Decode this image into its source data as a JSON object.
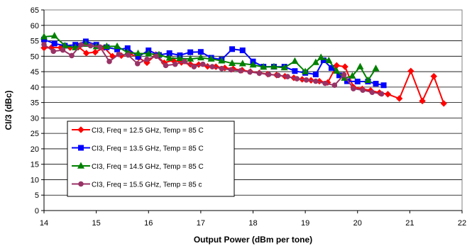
{
  "chart_data": {
    "type": "line",
    "title": "",
    "xlabel": "Output Power (dBm per tone)",
    "ylabel": "CI/3 (dBc)",
    "xlim": [
      14,
      22
    ],
    "ylim": [
      0,
      65
    ],
    "xticks": [
      "14",
      "15",
      "16",
      "17",
      "18",
      "19",
      "20",
      "21",
      "22"
    ],
    "yticks": [
      "0",
      "5",
      "10",
      "15",
      "20",
      "25",
      "30",
      "35",
      "40",
      "45",
      "50",
      "55",
      "60",
      "65"
    ],
    "grid": "horizontal",
    "legend_position": "lower-left",
    "series": [
      {
        "name": "CI3, Freq = 12.5 GHz, Temp = 85 C",
        "color": "#ff0000",
        "marker": "diamond",
        "x": [
          14.0,
          14.14,
          14.32,
          14.5,
          14.66,
          14.81,
          14.98,
          15.15,
          15.31,
          15.48,
          15.64,
          15.81,
          15.97,
          16.14,
          16.3,
          16.47,
          16.63,
          16.8,
          16.96,
          17.13,
          17.29,
          17.46,
          17.62,
          17.79,
          17.95,
          18.12,
          18.28,
          18.45,
          18.61,
          18.78,
          18.94,
          19.11,
          19.27,
          19.43,
          19.6,
          19.76,
          19.92,
          20.09,
          20.25,
          20.42,
          20.58,
          20.8,
          21.02,
          21.24,
          21.46,
          21.65
        ],
        "y": [
          52.7,
          52.8,
          52.8,
          52.8,
          53.0,
          51.0,
          51.3,
          52.8,
          50.0,
          50.2,
          50.8,
          49.5,
          47.9,
          50.5,
          47.9,
          48.7,
          48.0,
          47.4,
          47.3,
          46.7,
          46.6,
          46.2,
          45.9,
          45.5,
          45.0,
          44.6,
          44.2,
          43.9,
          43.5,
          43.0,
          42.5,
          42.2,
          41.9,
          41.5,
          47.0,
          46.6,
          40.0,
          39.4,
          38.9,
          38.2,
          37.7,
          36.3,
          45.2,
          35.5,
          43.5,
          34.7
        ]
      },
      {
        "name": "CI3, Freq = 13.5 GHz, Temp = 85 C",
        "color": "#0000ff",
        "marker": "square",
        "x": [
          14.0,
          14.2,
          14.4,
          14.6,
          14.8,
          15.0,
          15.2,
          15.4,
          15.6,
          15.8,
          16.0,
          16.2,
          16.4,
          16.6,
          16.8,
          17.0,
          17.2,
          17.4,
          17.6,
          17.8,
          18.0,
          18.2,
          18.4,
          18.6,
          18.8,
          19.0,
          19.2,
          19.35,
          19.5,
          19.65,
          19.8,
          20.0,
          20.2,
          20.35,
          20.5
        ],
        "y": [
          55.4,
          54.1,
          53.4,
          53.7,
          54.8,
          53.7,
          52.9,
          52.2,
          52.6,
          49.8,
          51.9,
          50.4,
          51.0,
          50.3,
          51.3,
          51.4,
          49.5,
          48.9,
          52.3,
          51.9,
          48.3,
          46.6,
          46.6,
          46.6,
          45.2,
          44.6,
          44.1,
          48.7,
          46.2,
          43.8,
          41.9,
          41.8,
          41.8,
          41.1,
          40.6
        ]
      },
      {
        "name": "CI3, Freq = 14.5 GHz, Temp = 85 C",
        "color": "#008000",
        "marker": "triangle",
        "x": [
          14.0,
          14.2,
          14.4,
          14.6,
          14.8,
          15.0,
          15.2,
          15.4,
          15.6,
          15.8,
          16.0,
          16.2,
          16.4,
          16.6,
          16.8,
          17.0,
          17.2,
          17.4,
          17.6,
          17.8,
          18.0,
          18.2,
          18.4,
          18.6,
          18.8,
          19.0,
          19.2,
          19.3,
          19.45,
          19.6,
          19.75,
          19.9,
          20.05,
          20.2,
          20.35
        ],
        "y": [
          56.3,
          56.6,
          53.4,
          52.8,
          53.9,
          53.1,
          53.2,
          53.2,
          51.2,
          50.9,
          50.8,
          50.5,
          49.4,
          49.3,
          49.1,
          49.5,
          49.1,
          48.5,
          47.7,
          47.6,
          47.2,
          46.5,
          46.6,
          46.3,
          48.4,
          45.0,
          48.0,
          49.6,
          48.6,
          45.2,
          42.9,
          43.6,
          46.6,
          42.2,
          46.0
        ]
      },
      {
        "name": "CI3, Freq = 15.5 GHz, Temp = 85 c",
        "color": "#993366",
        "marker": "circle",
        "x": [
          14.0,
          14.18,
          14.36,
          14.53,
          14.71,
          14.89,
          15.07,
          15.25,
          15.43,
          15.61,
          15.79,
          15.97,
          16.15,
          16.33,
          16.51,
          16.69,
          16.87,
          17.04,
          17.22,
          17.4,
          17.58,
          17.76,
          17.94,
          18.12,
          18.3,
          18.48,
          18.66,
          18.84,
          19.02,
          19.2,
          19.38,
          19.56,
          19.74,
          19.92,
          20.1,
          20.28,
          20.46
        ],
        "y": [
          53.8,
          51.6,
          52.0,
          50.2,
          53.7,
          53.4,
          53.0,
          48.3,
          50.6,
          50.4,
          47.6,
          49.0,
          50.0,
          47.0,
          47.4,
          48.3,
          46.6,
          47.4,
          46.6,
          46.0,
          45.6,
          45.3,
          44.9,
          44.5,
          44.1,
          43.8,
          43.4,
          42.7,
          42.3,
          41.9,
          41.2,
          40.6,
          44.0,
          39.5,
          39.0,
          38.3,
          37.8
        ]
      }
    ]
  }
}
